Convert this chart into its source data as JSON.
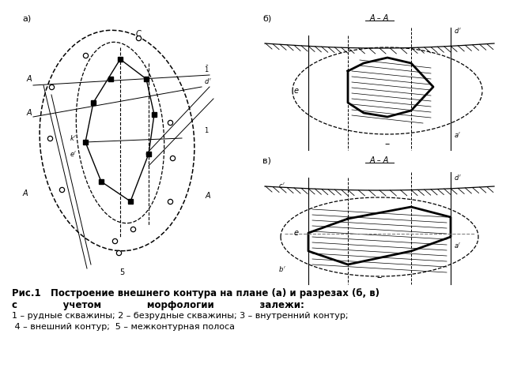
{
  "title_line1": "Рис.1   Построение внешнего контура на плане (а) и разрезах (б, в)",
  "title_line2": "с              учетом              морфологии              залежи:",
  "title_line3": "1 – рудные скважины; 2 – безрудные скважины; 3 – внутренний контур;",
  "title_line4": " 4 – внешний контур;  5 – межконтурная полоса",
  "bg_color": "#ffffff"
}
